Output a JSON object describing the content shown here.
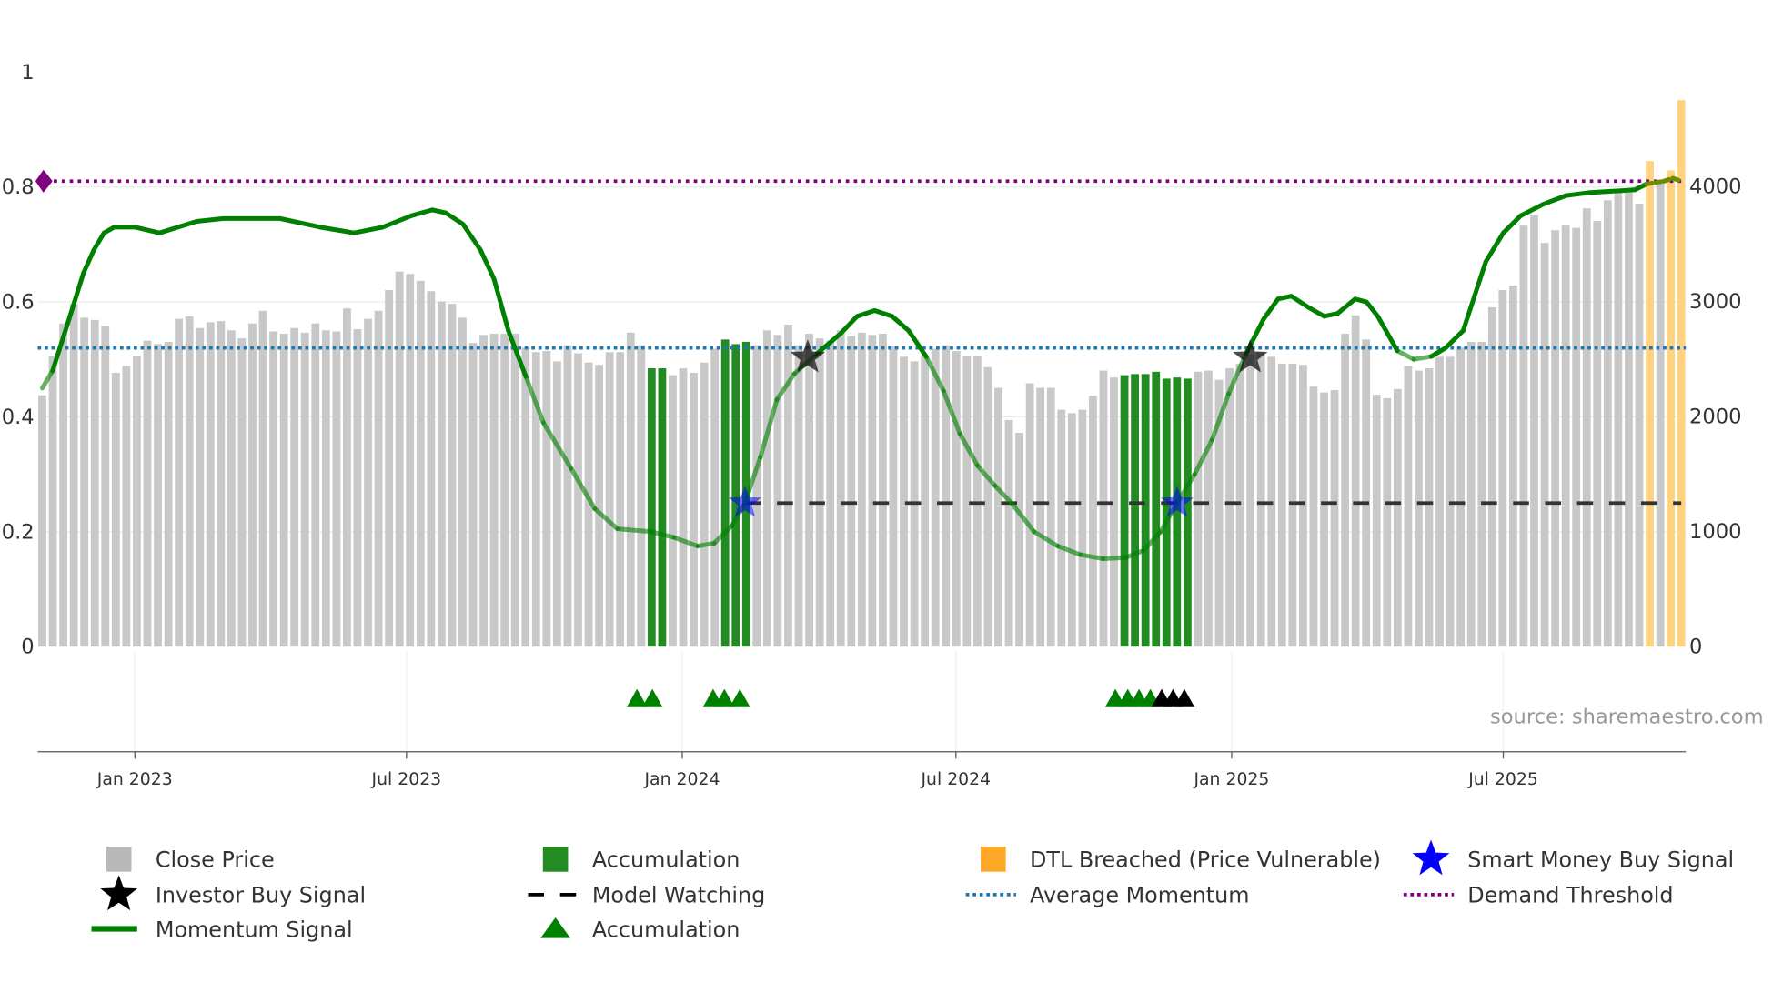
{
  "chart_data": {
    "type": "bar",
    "source_label": "source: sharemaestro.com",
    "left_axis": {
      "ticks": [
        0,
        0.2,
        0.4,
        0.6,
        0.8,
        1
      ],
      "tick_labels": [
        "0",
        "0.2",
        "0.4",
        "0.6",
        "0.8",
        "1"
      ],
      "ylim": [
        0,
        1
      ]
    },
    "right_axis": {
      "ticks": [
        0,
        1000,
        2000,
        3000,
        4000
      ],
      "tick_labels": [
        "0",
        "1000",
        "2000",
        "3000",
        "4000"
      ],
      "ylim": [
        0,
        4995
      ]
    },
    "x_axis": {
      "range_weeks": [
        0,
        159.3
      ],
      "ticks": [
        9,
        35.4,
        62.2,
        88.8,
        115.6,
        142
      ],
      "tick_labels": [
        "Jan 2023",
        "Jul 2023",
        "Jan 2024",
        "Jul 2024",
        "Jan 2025",
        "Jul 2025"
      ]
    },
    "close_price": [
      2185,
      2530,
      2810,
      2980,
      2860,
      2840,
      2790,
      2380,
      2440,
      2530,
      2660,
      2630,
      2650,
      2850,
      2870,
      2770,
      2820,
      2830,
      2750,
      2680,
      2810,
      2920,
      2740,
      2720,
      2770,
      2730,
      2810,
      2750,
      2740,
      2940,
      2760,
      2850,
      2920,
      3100,
      3260,
      3240,
      3180,
      3090,
      3000,
      2980,
      2860,
      2640,
      2710,
      2720,
      2720,
      2720,
      2600,
      2560,
      2570,
      2480,
      2620,
      2550,
      2470,
      2450,
      2560,
      2560,
      2730,
      2620,
      2420,
      2420,
      2360,
      2420,
      2380,
      2470,
      2590,
      2670,
      2630,
      2650,
      2620,
      2750,
      2710,
      2800,
      2620,
      2720,
      2680,
      2660,
      2750,
      2700,
      2730,
      2710,
      2720,
      2610,
      2520,
      2480,
      2530,
      2590,
      2620,
      2570,
      2530,
      2530,
      2430,
      2250,
      1970,
      1860,
      2290,
      2250,
      2250,
      2060,
      2030,
      2060,
      2180,
      2400,
      2340,
      2360,
      2370,
      2370,
      2390,
      2330,
      2340,
      2330,
      2390,
      2400,
      2320,
      2420,
      2460,
      2540,
      2560,
      2520,
      2460,
      2460,
      2450,
      2260,
      2210,
      2230,
      2720,
      2880,
      2670,
      2190,
      2160,
      2240,
      2440,
      2400,
      2420,
      2520,
      2520,
      2600,
      2650,
      2650,
      2950,
      3100,
      3140,
      3660,
      3750,
      3510,
      3620,
      3660,
      3640,
      3810,
      3700,
      3880,
      3970,
      3970,
      3850,
      4220,
      4030,
      4140,
      4750
    ],
    "accumulation_bar_indices": [
      58,
      59,
      65,
      66,
      67,
      103,
      104,
      105,
      106,
      107,
      108,
      109
    ],
    "dtl_breached_bar_indices": [
      153,
      155,
      156
    ],
    "momentum_signal": [
      [
        0,
        0.45
      ],
      [
        1,
        0.48
      ],
      [
        2.6,
        0.57
      ],
      [
        4,
        0.65
      ],
      [
        5,
        0.69
      ],
      [
        6,
        0.72
      ],
      [
        7,
        0.73
      ],
      [
        9,
        0.73
      ],
      [
        11.4,
        0.72
      ],
      [
        15,
        0.74
      ],
      [
        17.6,
        0.745
      ],
      [
        23.1,
        0.745
      ],
      [
        27,
        0.73
      ],
      [
        30.3,
        0.72
      ],
      [
        33.1,
        0.73
      ],
      [
        35.9,
        0.75
      ],
      [
        37.9,
        0.76
      ],
      [
        39.2,
        0.755
      ],
      [
        40.9,
        0.735
      ],
      [
        42.6,
        0.69
      ],
      [
        43.9,
        0.64
      ],
      [
        45.3,
        0.55
      ],
      [
        47,
        0.47
      ],
      [
        48.7,
        0.39
      ],
      [
        51.4,
        0.31
      ],
      [
        53.7,
        0.24
      ],
      [
        55.9,
        0.205
      ],
      [
        59.2,
        0.2
      ],
      [
        61.4,
        0.19
      ],
      [
        63.7,
        0.175
      ],
      [
        65.3,
        0.18
      ],
      [
        67,
        0.21
      ],
      [
        68.3,
        0.25
      ],
      [
        69.8,
        0.33
      ],
      [
        71.4,
        0.43
      ],
      [
        73.1,
        0.475
      ],
      [
        75.3,
        0.51
      ],
      [
        77.6,
        0.545
      ],
      [
        79.2,
        0.575
      ],
      [
        80.9,
        0.585
      ],
      [
        82.6,
        0.575
      ],
      [
        84.2,
        0.55
      ],
      [
        85.9,
        0.505
      ],
      [
        87.6,
        0.445
      ],
      [
        89.2,
        0.37
      ],
      [
        90.9,
        0.315
      ],
      [
        92.6,
        0.28
      ],
      [
        94.2,
        0.25
      ],
      [
        96.4,
        0.2
      ],
      [
        98.7,
        0.175
      ],
      [
        100.9,
        0.16
      ],
      [
        103.1,
        0.153
      ],
      [
        105.3,
        0.155
      ],
      [
        107,
        0.167
      ],
      [
        108.7,
        0.2
      ],
      [
        110.3,
        0.25
      ],
      [
        112,
        0.3
      ],
      [
        113.7,
        0.36
      ],
      [
        115.3,
        0.44
      ],
      [
        117,
        0.51
      ],
      [
        118.7,
        0.57
      ],
      [
        120.1,
        0.605
      ],
      [
        121.4,
        0.61
      ],
      [
        123.1,
        0.59
      ],
      [
        124.6,
        0.575
      ],
      [
        125.9,
        0.58
      ],
      [
        127.6,
        0.605
      ],
      [
        128.7,
        0.6
      ],
      [
        129.8,
        0.575
      ],
      [
        131.7,
        0.515
      ],
      [
        133.3,
        0.5
      ],
      [
        135,
        0.505
      ],
      [
        136.4,
        0.52
      ],
      [
        138.1,
        0.55
      ],
      [
        140.3,
        0.67
      ],
      [
        142,
        0.72
      ],
      [
        143.7,
        0.75
      ],
      [
        145.9,
        0.77
      ],
      [
        148.1,
        0.785
      ],
      [
        150.3,
        0.79
      ],
      [
        154.8,
        0.795
      ],
      [
        155.9,
        0.805
      ],
      [
        157.6,
        0.81
      ],
      [
        158.5,
        0.815
      ],
      [
        159.3,
        0.81
      ]
    ],
    "average_momentum": 0.52,
    "demand_threshold": 0.81,
    "model_watching": {
      "level": 0.25,
      "from_week": 68.3,
      "to_week": 159.3
    },
    "smart_money_buy_signals": [
      [
        68.3,
        0.25
      ],
      [
        110.3,
        0.25
      ]
    ],
    "investor_buy_signals": [
      [
        74.4,
        0.503
      ],
      [
        117.4,
        0.503
      ]
    ],
    "accumulation_markers": [
      57.8,
      59.3,
      65.2,
      66.3,
      67.8,
      104.3,
      105.5,
      106.6,
      107.7
    ],
    "watch_markers": [
      108.8,
      109.9,
      111.0
    ],
    "colors": {
      "close": "#c8c8c8",
      "accum": "#228b22",
      "dtl": "#ffd27f",
      "momentum": "#008000",
      "avg": "#1f77b4",
      "demand": "#800080",
      "smart": "#0000ff"
    },
    "legend": [
      {
        "label": "Close Price"
      },
      {
        "label": "Accumulation"
      },
      {
        "label": "DTL Breached (Price Vulnerable)"
      },
      {
        "label": "Smart Money Buy Signal"
      },
      {
        "label": "Investor Buy Signal"
      },
      {
        "label": "Model Watching"
      },
      {
        "label": "Average Momentum"
      },
      {
        "label": "Demand Threshold"
      },
      {
        "label": "Momentum Signal"
      },
      {
        "label": "Accumulation"
      }
    ]
  }
}
